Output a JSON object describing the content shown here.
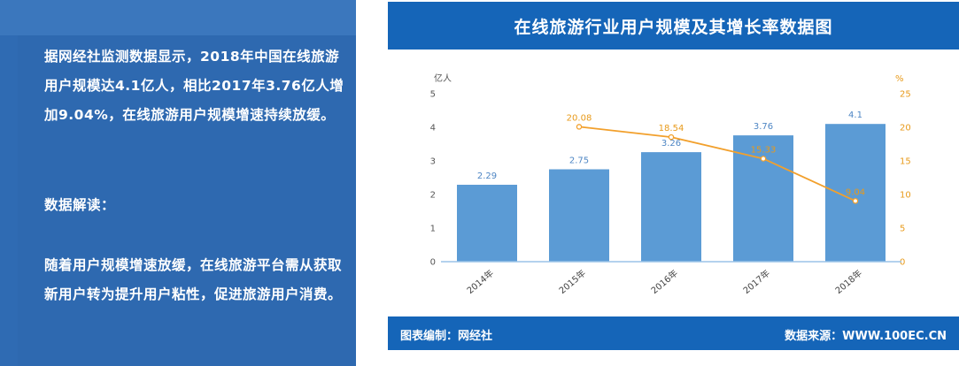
{
  "left_panel": {
    "paragraphs": [
      "据网经社监测数据显示，2018年中国在线旅游用户规模达4.1亿人，相比2017年3.76亿人增加9.04%，在线旅游用户规模增速持续放缓。",
      "数据解读：",
      "随着用户规模增速放缓，在线旅游平台需从获取新用户转为提升用户粘性，促进旅游用户消费。"
    ]
  },
  "footer": {
    "left": "图表编制：网经社",
    "right": "数据来源：WWW.100EC.CN"
  },
  "colors": {
    "bar": "#5b9bd5",
    "line": "#f2a02c",
    "header": "#1565b8",
    "panel": "#2f6bb3"
  },
  "chart_data": {
    "type": "bar",
    "title": "在线旅游行业用户规模及其增长率数据图",
    "categories": [
      "2014年",
      "2015年",
      "2016年",
      "2017年",
      "2018年"
    ],
    "series": [
      {
        "values": [
          2.29,
          2.75,
          3.26,
          3.76,
          4.1
        ],
        "axis": "left",
        "type": "bar"
      },
      {
        "values": [
          null,
          20.08,
          18.54,
          15.33,
          9.04
        ],
        "axis": "right",
        "type": "line"
      }
    ],
    "ylabel": "亿人",
    "ylabel_right": "%",
    "ylim": [
      0,
      5
    ],
    "ylim_right": [
      0,
      25
    ],
    "yticks": [
      0,
      1,
      2,
      3,
      4,
      5
    ],
    "yticks_right": [
      0,
      5,
      10,
      15,
      20,
      25
    ],
    "grid": false,
    "legend": "none"
  }
}
